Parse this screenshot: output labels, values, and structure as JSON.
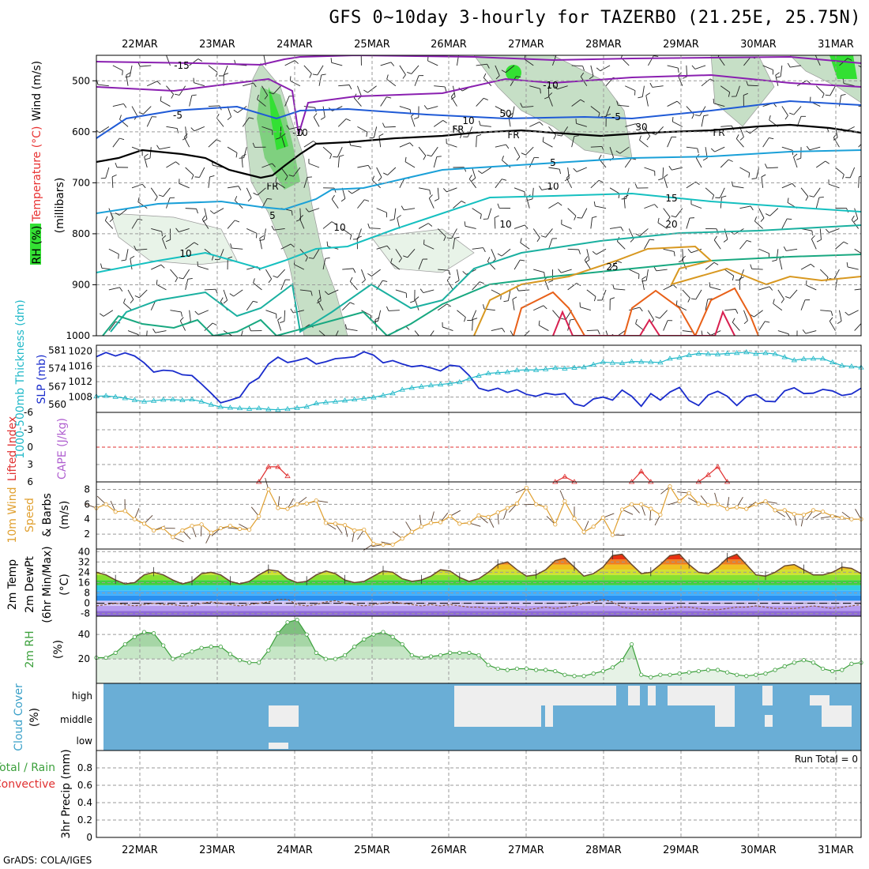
{
  "title": "GFS 0~10day 3-hourly for TAZERBO (21.25E, 25.75N)",
  "credit": "GrADS: COLA/IGES",
  "dates": [
    "22MAR",
    "23MAR",
    "24MAR",
    "25MAR",
    "26MAR",
    "27MAR",
    "28MAR",
    "29MAR",
    "30MAR",
    "31MAR"
  ],
  "colors": {
    "grid": "#9a9a9a",
    "slp": "#1a2ccc",
    "thick": "#20b8c8",
    "li": "#e03030",
    "wind": "#e0a030",
    "rh": "#3ca03c",
    "cloud": "#6aaed6",
    "cloudfill": "#eeeeee"
  },
  "chart_data": [
    {
      "id": "upper",
      "type": "contour",
      "ylabel_parts": [
        "RH (%)",
        "Temperature (°C)",
        "Wind (m/s)"
      ],
      "ylabel_sub": "(millibars)",
      "y_ticks": [
        "500",
        "600",
        "700",
        "800",
        "900",
        "1000"
      ],
      "ylim": [
        450,
        1000
      ],
      "contour_labels": [
        "-15",
        "-10",
        "-10",
        "-5",
        "-5",
        "5",
        "5",
        "10",
        "10",
        "10",
        "15",
        "20",
        "25",
        "FR",
        "FR",
        "FR",
        "FR",
        "0"
      ],
      "rh_labels": [
        "10",
        "50",
        "30",
        "10"
      ]
    },
    {
      "id": "pressure",
      "type": "line",
      "ylabel_left": "1000-500mb Thickness (dm)",
      "ylabel_right": "SLP (mb)",
      "left_ticks": [
        "581",
        "574",
        "567",
        "560"
      ],
      "right_ticks": [
        "1020",
        "1016",
        "1012",
        "1008"
      ],
      "series": [
        {
          "name": "SLP (mb)",
          "axis": "right",
          "values": [
            1018.5,
            1019.6,
            1018.7,
            1019.5,
            1018.7,
            1016.9,
            1014.5,
            1015,
            1014.8,
            1013.8,
            1013.6,
            1011.4,
            1009,
            1006.5,
            1007.2,
            1008,
            1011.5,
            1013,
            1016.6,
            1018.4,
            1017,
            1017.5,
            1018.2,
            1016.6,
            1017.2,
            1018,
            1018.2,
            1018.5,
            1019.8,
            1018.9,
            1016.9,
            1017.5,
            1016.6,
            1015.9,
            1016.2,
            1015.6,
            1014.8,
            1016.3,
            1016,
            1013.6,
            1010.3,
            1009.6,
            1010.3,
            1009.2,
            1009.9,
            1008.7,
            1008.2,
            1009,
            1008.6,
            1008.9,
            1006.2,
            1005.6,
            1007.5,
            1008,
            1007.2,
            1009.8,
            1008.2,
            1005.6,
            1008.9,
            1007.2,
            1009.3,
            1010.5,
            1007.1,
            1005.8,
            1008.5,
            1009.5,
            1008.2,
            1005.8,
            1008.1,
            1008.7,
            1006.9,
            1006.8,
            1009.6,
            1010.4,
            1008.9,
            1009,
            1010,
            1009.6,
            1008.4,
            1008.8,
            1010.3
          ]
        },
        {
          "name": "Thickness (dm)",
          "axis": "left",
          "values": [
            563.2,
            563.4,
            563,
            562.5,
            561.8,
            561.2,
            561.5,
            561.9,
            562,
            561.7,
            562,
            561.2,
            560,
            559.1,
            558.8,
            558.6,
            558.4,
            558.6,
            558.2,
            558,
            558.3,
            558.7,
            559.2,
            560.5,
            560.9,
            561.2,
            561.6,
            562,
            562.4,
            562.8,
            563.6,
            564.4,
            565.8,
            566.5,
            567,
            567.5,
            567.8,
            568.2,
            568.7,
            570.1,
            571.2,
            572.1,
            572.4,
            572.6,
            573.3,
            573.5,
            573.4,
            573.7,
            574.2,
            574,
            574.3,
            574.5,
            575.5,
            576.5,
            576.2,
            576.1,
            576.7,
            576.6,
            576.5,
            576.3,
            577.8,
            578.2,
            579.2,
            579.8,
            579.6,
            579.5,
            579.8,
            580,
            580.3,
            579.7,
            580,
            579.6,
            578.4,
            577.2,
            577.7,
            577.8,
            577.8,
            576.4,
            575.1,
            574.8,
            574.4
          ]
        }
      ]
    },
    {
      "id": "stability",
      "type": "line",
      "ylabel_left": "Lifted Index",
      "ylabel_right": "CAPE (J/kg)",
      "y_ticks": [
        "-6",
        "-3",
        "0",
        "3",
        "6"
      ],
      "ylim": [
        -6,
        6
      ],
      "series": [
        {
          "name": "Lifted Index",
          "points": [
            [
              17,
              6
            ],
            [
              18,
              3.4
            ],
            [
              19,
              3.4
            ],
            [
              20,
              5
            ]
          ]
        },
        {
          "name": "Lifted Index",
          "points": [
            [
              48,
              6
            ],
            [
              49,
              5.1
            ],
            [
              50,
              6
            ]
          ]
        },
        {
          "name": "Lifted Index",
          "points": [
            [
              56,
              6
            ],
            [
              57,
              4.2
            ],
            [
              58,
              6
            ]
          ]
        },
        {
          "name": "Lifted Index",
          "points": [
            [
              63,
              6
            ],
            [
              64,
              4.8
            ],
            [
              65,
              3.4
            ],
            [
              66,
              6
            ]
          ]
        }
      ]
    },
    {
      "id": "wind10m",
      "type": "line",
      "ylabel_parts": [
        "10m Wind",
        "Speed",
        "& Barbs"
      ],
      "ylabel_sub": "(m/s)",
      "y_ticks": [
        "2",
        "4",
        "6",
        "8"
      ],
      "ylim": [
        0,
        9
      ],
      "series": [
        {
          "name": "10m Wind Speed",
          "values": [
            5.5,
            6,
            5,
            5.1,
            4,
            3.4,
            2.5,
            2.8,
            1.6,
            2.5,
            3.1,
            3.3,
            2.2,
            2.8,
            3.1,
            2.7,
            2.6,
            4.4,
            8,
            5.5,
            5.4,
            6,
            6.1,
            6.5,
            3.5,
            3.4,
            3.2,
            2.5,
            2.6,
            0.7,
            0.6,
            0.6,
            1.4,
            2.3,
            3,
            3.5,
            3.6,
            4.4,
            3.4,
            3.5,
            4.5,
            4.3,
            4.9,
            5.5,
            6.1,
            8.2,
            6,
            5.6,
            3.3,
            6.4,
            4.1,
            2.3,
            3,
            4.2,
            1.9,
            5.3,
            6,
            6,
            5.4,
            4.6,
            8.4,
            6.4,
            7.5,
            6.1,
            5.9,
            6,
            5.4,
            5.6,
            5.4,
            6,
            6.4,
            5.2,
            5.2,
            4.7,
            4.6,
            5.2,
            5,
            4.4,
            4.2,
            4,
            4
          ]
        }
      ]
    },
    {
      "id": "temp2m",
      "type": "area",
      "ylabel_parts": [
        "2m Temp",
        "2m DewPt",
        "(6hr Min/Max)"
      ],
      "ylabel_sub": "(°C)",
      "y_ticks": [
        "40",
        "32",
        "24",
        "16",
        "8",
        "0",
        "-8"
      ],
      "ylim": [
        -10,
        42
      ],
      "series": [
        {
          "name": "2m Temp",
          "values": [
            24,
            22,
            18,
            15,
            16,
            22,
            24,
            22,
            18,
            15,
            17,
            23,
            24,
            22,
            17,
            15,
            17,
            22,
            26,
            25,
            19,
            16,
            17,
            22,
            25,
            23,
            18,
            16,
            17,
            21,
            25,
            24,
            19,
            17,
            18,
            21,
            26,
            25,
            20,
            17,
            19,
            24,
            30,
            32,
            26,
            21,
            22,
            26,
            33,
            35,
            28,
            21,
            23,
            28,
            37,
            38,
            30,
            23,
            24,
            30,
            37,
            38,
            30,
            24,
            23,
            28,
            35,
            38,
            30,
            22,
            21,
            24,
            29,
            30,
            26,
            22,
            22,
            24,
            28,
            27,
            23
          ]
        },
        {
          "name": "2m DewPt",
          "values": [
            -2,
            -1,
            0,
            -1,
            -2,
            -1,
            0,
            -1,
            -1,
            -2,
            -2,
            0,
            1,
            0,
            -1,
            -2,
            -1,
            0,
            1,
            3,
            3,
            -1,
            -2,
            -1,
            1,
            2,
            0,
            -1,
            -2,
            -1,
            0,
            1,
            0,
            -1,
            -2,
            -1,
            -2,
            -1,
            -2,
            -3,
            -3,
            -4,
            -4,
            -3,
            -4,
            -5,
            -4,
            -3,
            -4,
            -3,
            -2,
            0,
            1,
            3,
            1,
            -3,
            -4,
            -5,
            -5,
            -5,
            -4,
            -3,
            -3,
            -4,
            -5,
            -5,
            -4,
            -3,
            -3,
            -2,
            -3,
            -4,
            -4,
            -4,
            -3,
            -2,
            -3,
            -4,
            -3,
            -2,
            -1
          ]
        }
      ]
    },
    {
      "id": "rh2m",
      "type": "area",
      "ylabel_left": "2m RH",
      "ylabel_sub": "(%)",
      "y_ticks": [
        "40",
        "20"
      ],
      "ylim": [
        0,
        55
      ],
      "series": [
        {
          "name": "2m RH",
          "values": [
            21,
            21,
            25,
            32,
            38,
            42,
            41,
            31,
            20,
            23,
            26,
            29,
            30,
            30,
            24,
            19,
            17,
            17,
            27,
            41,
            50,
            52,
            40,
            25,
            20,
            20,
            23,
            30,
            36,
            40,
            42,
            38,
            32,
            23,
            21,
            22,
            23,
            25,
            25,
            25,
            23,
            15,
            12,
            11,
            12,
            12,
            11,
            11,
            10,
            7,
            6,
            6,
            8,
            10,
            13,
            19,
            32,
            7,
            5,
            7,
            7,
            8,
            9,
            10,
            11,
            11,
            9,
            7,
            6,
            7,
            8,
            11,
            14,
            17,
            19,
            17,
            12,
            10,
            11,
            16,
            17
          ]
        }
      ]
    },
    {
      "id": "cloud",
      "type": "heatmap",
      "ylabel_left": "Cloud Cover",
      "ylabel_sub": "(%)",
      "y_ticks": [
        "high",
        "middle",
        "low"
      ]
    },
    {
      "id": "precip",
      "type": "bar",
      "ylabel_parts": [
        "Total / Rain",
        "Convective"
      ],
      "ylabel_sub": "3hr Precip (mm)",
      "y_ticks": [
        "0.8",
        "0.6",
        "0.4",
        "0.2",
        "0"
      ],
      "ylim": [
        0,
        1
      ],
      "run_total_label": "Run Total = 0",
      "values": []
    }
  ]
}
